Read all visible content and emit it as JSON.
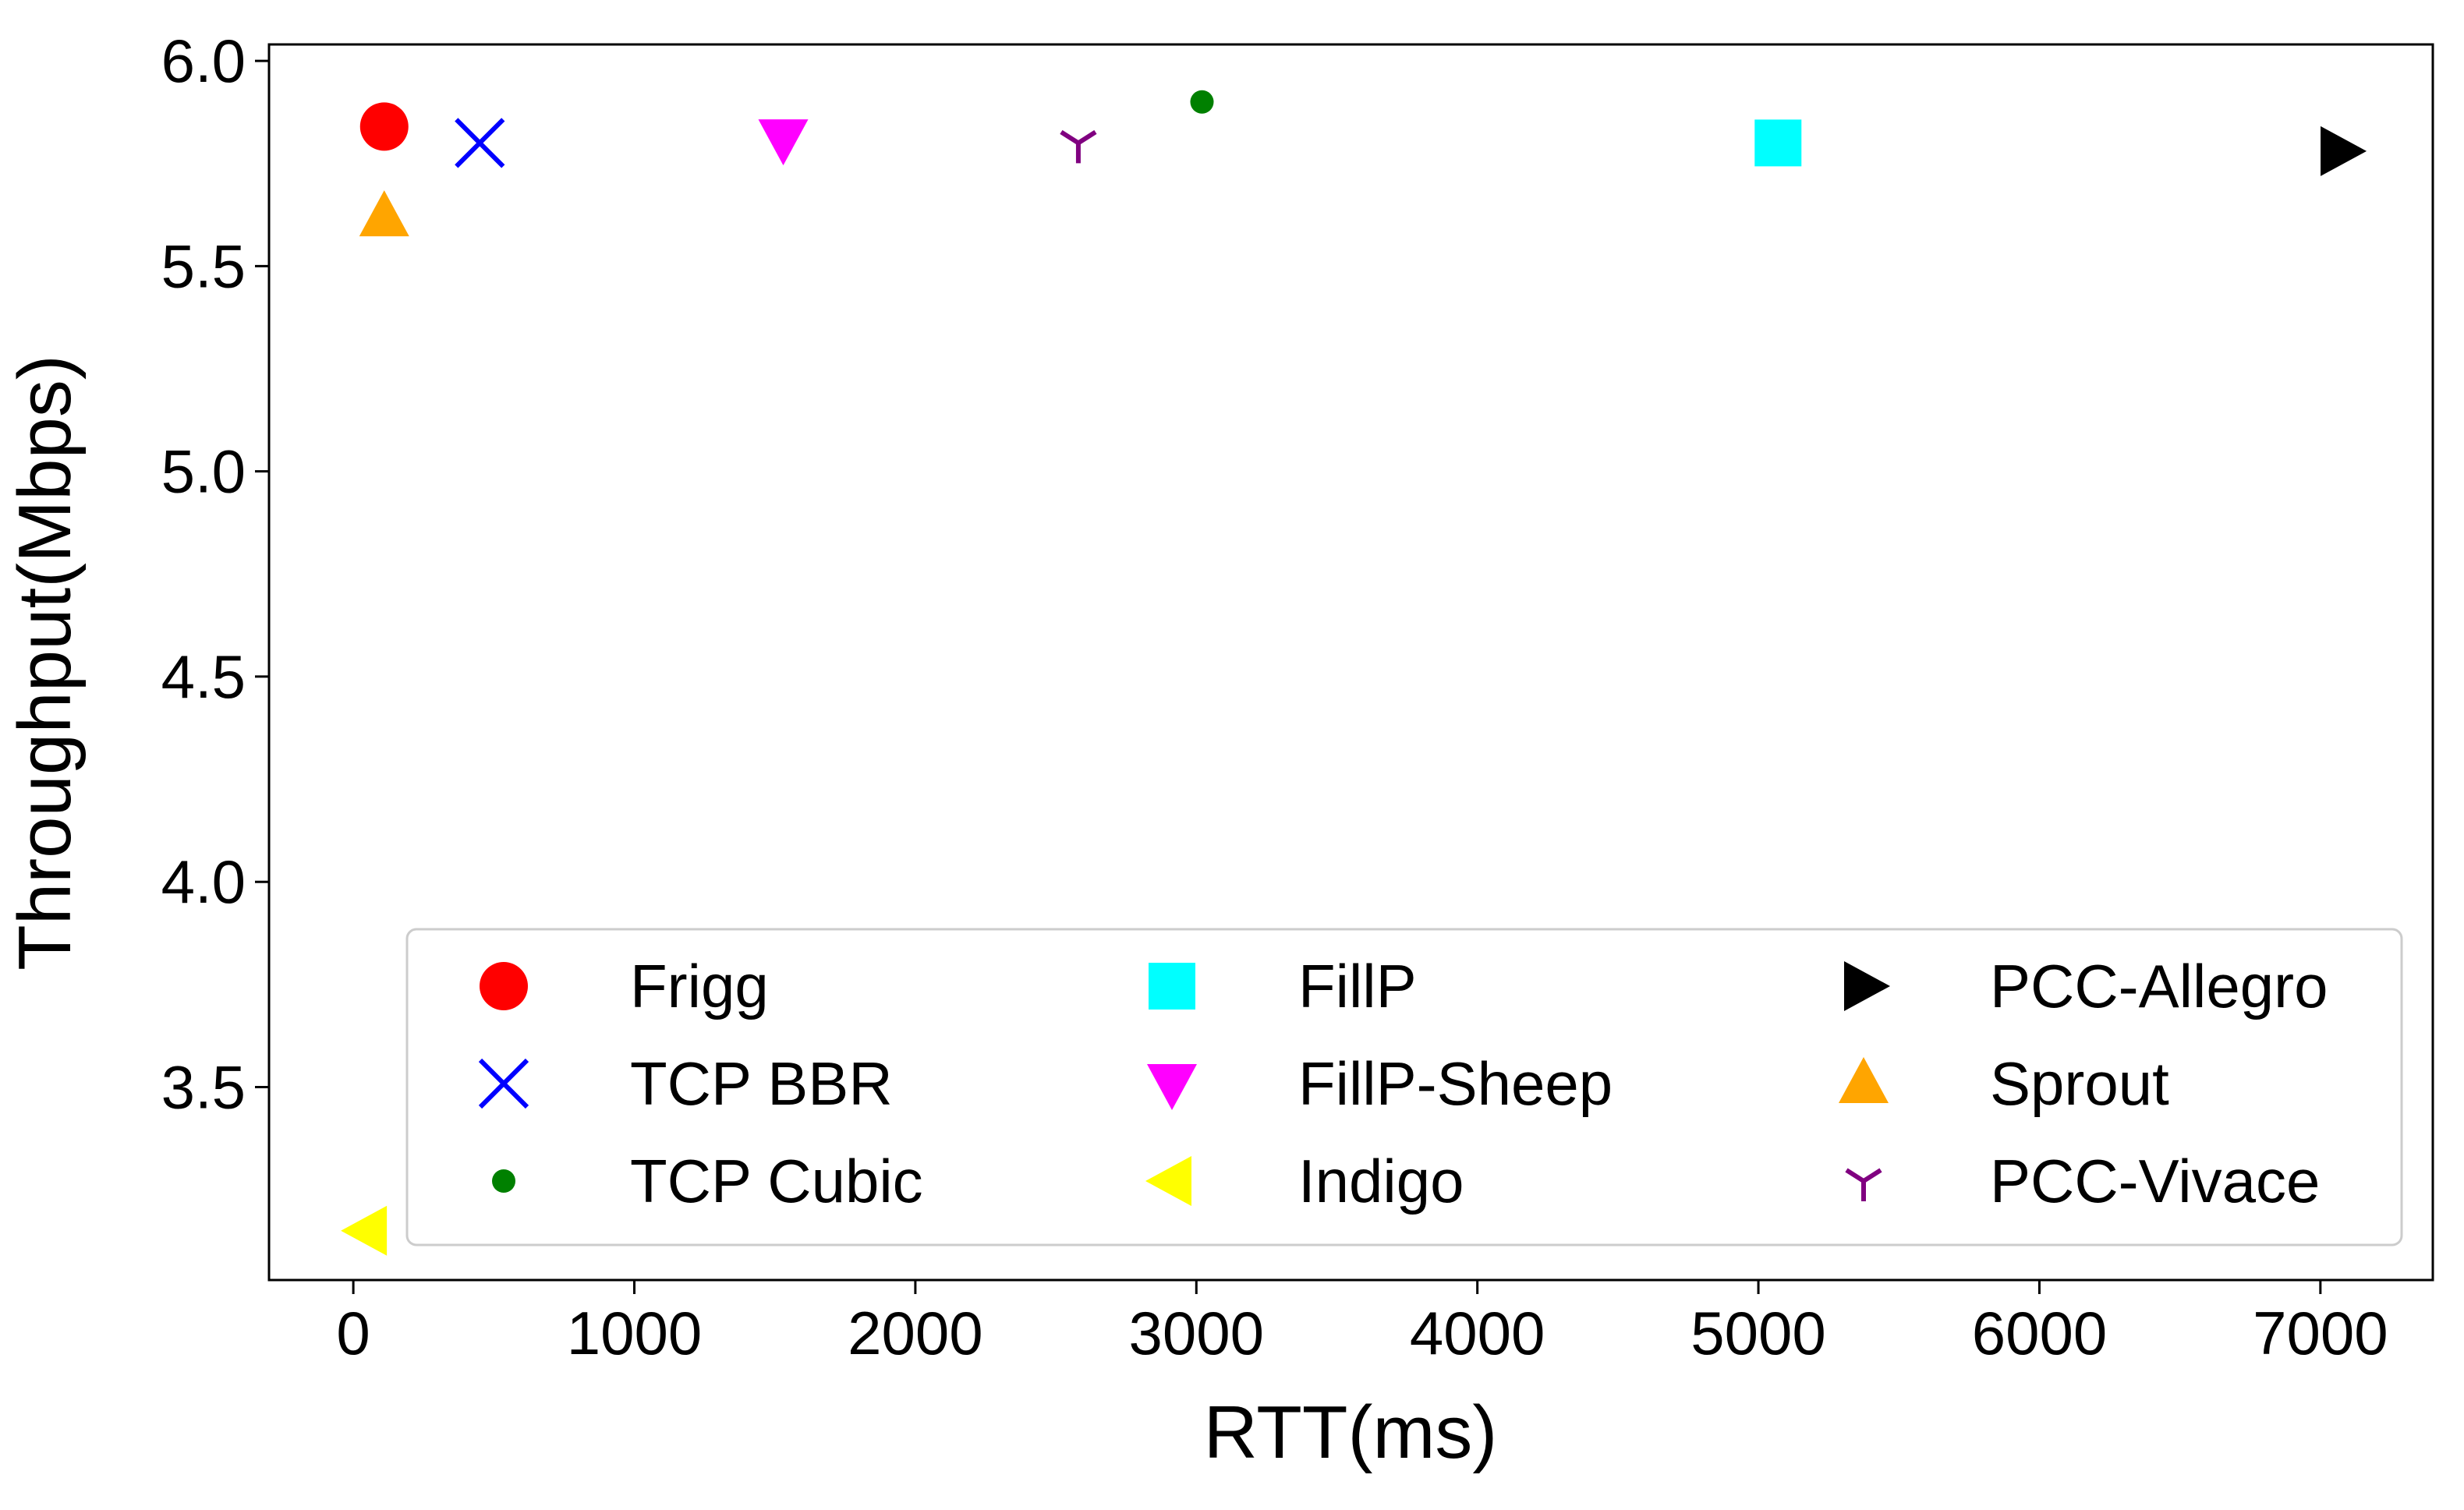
{
  "chart_data": {
    "type": "scatter",
    "xlabel": "RTT(ms)",
    "ylabel": "Throughput(Mbps)",
    "xlim": [
      -300,
      7400
    ],
    "ylim": [
      3.03,
      6.04
    ],
    "xticks": [
      0,
      1000,
      2000,
      3000,
      4000,
      5000,
      6000,
      7000
    ],
    "yticks": [
      3.5,
      4.0,
      4.5,
      5.0,
      5.5,
      6.0
    ],
    "xtick_labels": [
      "0",
      "1000",
      "2000",
      "3000",
      "4000",
      "5000",
      "6000",
      "7000"
    ],
    "ytick_labels": [
      "3.5",
      "4.0",
      "4.5",
      "5.0",
      "5.5",
      "6.0"
    ],
    "grid": false,
    "legend_position": "lower-right",
    "legend_columns": 3,
    "series": [
      {
        "name": "Frigg",
        "x": 110,
        "y": 5.84,
        "marker": "circle",
        "color": "#ff0000"
      },
      {
        "name": "TCP BBR",
        "x": 450,
        "y": 5.8,
        "marker": "x",
        "color": "#0000ff"
      },
      {
        "name": "TCP Cubic",
        "x": 3020,
        "y": 5.9,
        "marker": "point",
        "color": "#008000"
      },
      {
        "name": "FillP",
        "x": 5070,
        "y": 5.8,
        "marker": "square",
        "color": "#00ffff"
      },
      {
        "name": "FillP-Sheep",
        "x": 1530,
        "y": 5.81,
        "marker": "triangle-down",
        "color": "#ff00ff"
      },
      {
        "name": "Indigo",
        "x": 50,
        "y": 3.15,
        "marker": "triangle-left",
        "color": "#ffff00"
      },
      {
        "name": "PCC-Allegro",
        "x": 7070,
        "y": 5.78,
        "marker": "triangle-right",
        "color": "#000000"
      },
      {
        "name": "Sprout",
        "x": 110,
        "y": 5.62,
        "marker": "triangle-up",
        "color": "#ffa500"
      },
      {
        "name": "PCC-Vivace",
        "x": 2580,
        "y": 5.8,
        "marker": "tri-down",
        "color": "#800080"
      }
    ]
  }
}
